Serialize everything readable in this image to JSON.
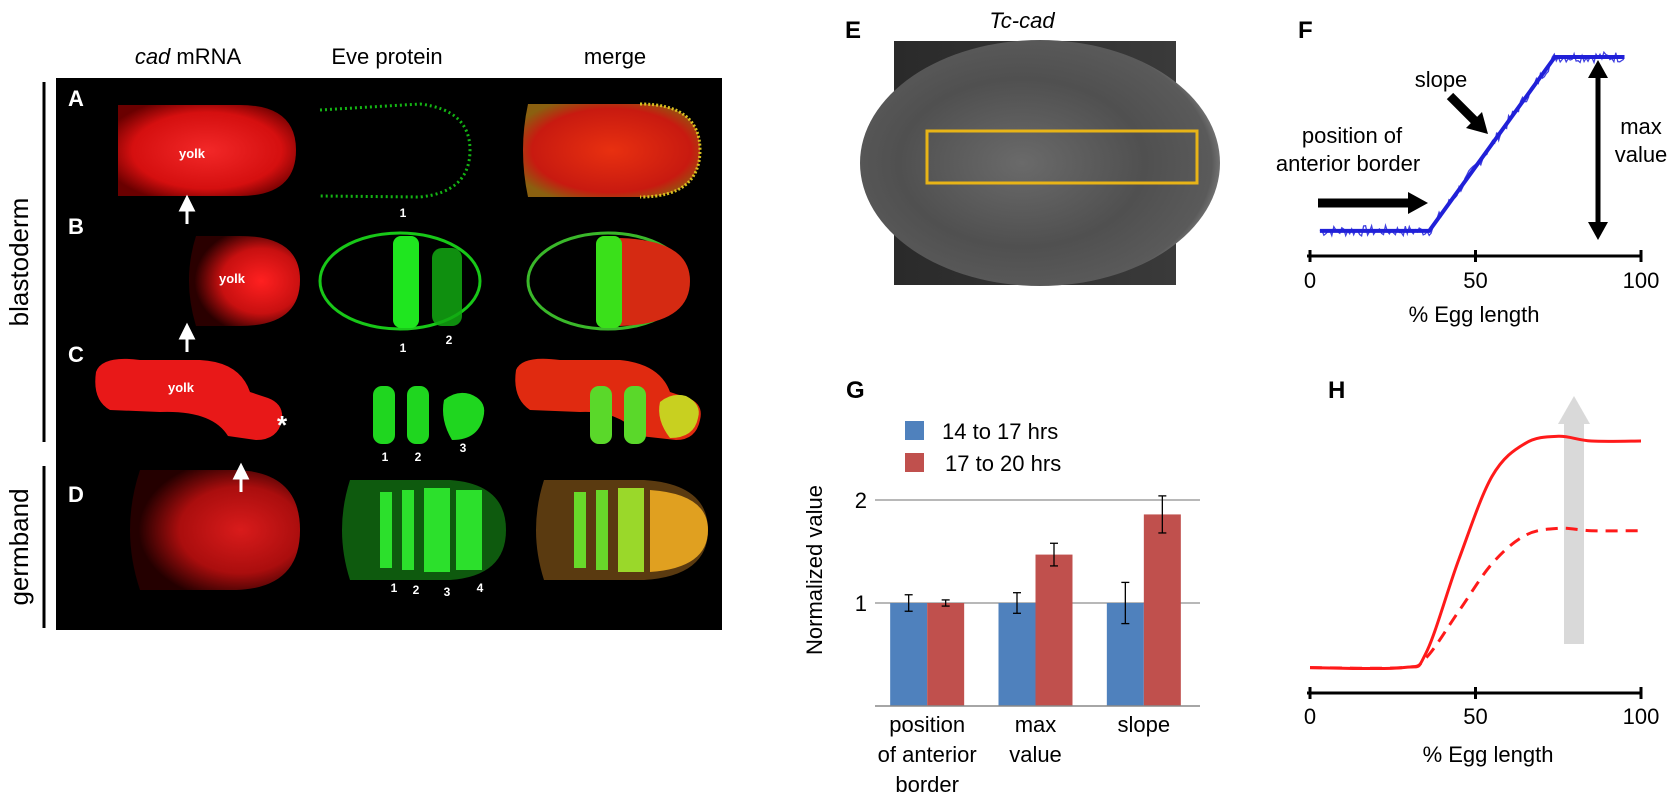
{
  "colors": {
    "red": "#ff1a1a",
    "green": "#19e619",
    "blue": "#2020d8",
    "bar_blue": "#4f81bd",
    "bar_red": "#c0504d",
    "box": "#e8b417",
    "arrow_gray": "#d9d9d9"
  },
  "left_panel": {
    "col_headers": {
      "cad_italic": "cad",
      "cad_rest": " mRNA",
      "eve": "Eve protein",
      "merge": "merge"
    },
    "row_labels": [
      "A",
      "B",
      "C",
      "D"
    ],
    "group_labels": [
      "blastoderm",
      "germband"
    ],
    "yolk_label": "yolk",
    "star": "*",
    "stripe_labels": {
      "A": [
        "1"
      ],
      "B": [
        "1",
        "2"
      ],
      "C": [
        "1",
        "2",
        "3"
      ],
      "D": [
        "1",
        "2",
        "3",
        "4"
      ]
    }
  },
  "panel_E": {
    "letter": "E",
    "title": "Tc-cad"
  },
  "panel_F": {
    "letter": "F",
    "annotations": {
      "slope": "slope",
      "border_line1": "position of",
      "border_line2": "anterior border",
      "max_line1": "max",
      "max_line2": "value"
    },
    "xlabel": "% Egg length",
    "xticks": [
      "0",
      "50",
      "100"
    ]
  },
  "panel_G": {
    "letter": "G"
  },
  "panel_H": {
    "letter": "H",
    "xlabel": "% Egg length",
    "xticks": [
      "0",
      "50",
      "100"
    ]
  },
  "chart_data": [
    {
      "type": "bar",
      "panel": "G",
      "categories": [
        "position of anterior border",
        "max value",
        "slope"
      ],
      "category_lines": [
        [
          "position",
          "of anterior",
          "border"
        ],
        [
          "max",
          "value"
        ],
        [
          "slope"
        ]
      ],
      "series": [
        {
          "name": "14 to 17 hrs",
          "values": [
            1.0,
            1.0,
            1.0
          ],
          "errors": [
            0.08,
            0.1,
            0.2
          ]
        },
        {
          "name": "17 to 20 hrs",
          "values": [
            1.0,
            1.47,
            1.86
          ],
          "errors": [
            0.03,
            0.11,
            0.18
          ]
        }
      ],
      "ylabel": "Normalized value",
      "yticks": [
        "1",
        "2"
      ],
      "ylim": [
        0,
        2.4
      ],
      "grid": true,
      "legend": "top-left"
    },
    {
      "type": "line",
      "panel": "F",
      "xlabel": "% Egg length",
      "xlim": [
        0,
        100
      ],
      "series": [
        {
          "style": "piecewise fit",
          "x": [
            3,
            36,
            74,
            95
          ],
          "y": [
            0.06,
            0.06,
            1.0,
            1.0
          ]
        }
      ]
    },
    {
      "type": "line",
      "panel": "H",
      "xlabel": "% Egg length",
      "xlim": [
        0,
        100
      ],
      "series": [
        {
          "style": "solid",
          "x": [
            0,
            28,
            35,
            45,
            55,
            65,
            75,
            85,
            100
          ],
          "y": [
            0.04,
            0.04,
            0.1,
            0.5,
            0.85,
            0.99,
            1.02,
            1.0,
            1.0
          ]
        },
        {
          "style": "dashed",
          "x": [
            0,
            28,
            35,
            45,
            55,
            65,
            75,
            85,
            100
          ],
          "y": [
            0.04,
            0.04,
            0.08,
            0.28,
            0.48,
            0.6,
            0.63,
            0.62,
            0.62
          ]
        }
      ]
    }
  ]
}
